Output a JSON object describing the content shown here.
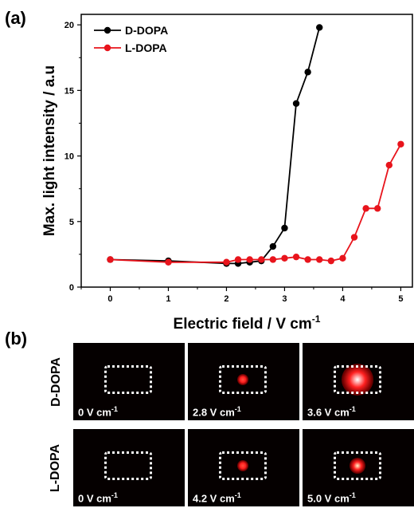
{
  "panel_a_label": "(a)",
  "panel_b_label": "(b)",
  "chart_data": {
    "type": "line",
    "xlabel": "Electric field / V cm",
    "xlabel_sup": "-1",
    "ylabel": "Max. light intensity / a.u",
    "xlim": [
      -0.5,
      5.2
    ],
    "ylim": [
      0,
      20.8
    ],
    "xticks": [
      0,
      1,
      2,
      3,
      4,
      5
    ],
    "yticks": [
      0,
      5,
      10,
      15,
      20
    ],
    "legend_position": "top-left",
    "series": [
      {
        "name": "D-DOPA",
        "color": "#000000",
        "x": [
          0,
          1,
          2,
          2.2,
          2.4,
          2.6,
          2.8,
          3.0,
          3.2,
          3.4,
          3.6
        ],
        "y": [
          2.1,
          2.0,
          1.8,
          1.8,
          1.9,
          2.0,
          3.1,
          4.5,
          14.0,
          16.4,
          19.8
        ]
      },
      {
        "name": "L-DOPA",
        "color": "#e8141c",
        "x": [
          0,
          1,
          2,
          2.2,
          2.4,
          2.6,
          2.8,
          3.0,
          3.2,
          3.4,
          3.6,
          3.8,
          4.0,
          4.2,
          4.4,
          4.6,
          4.8,
          5.0
        ],
        "y": [
          2.1,
          1.9,
          1.9,
          2.1,
          2.1,
          2.1,
          2.1,
          2.2,
          2.3,
          2.1,
          2.1,
          2.0,
          2.2,
          3.8,
          6.0,
          6.0,
          9.3,
          10.9
        ]
      }
    ]
  },
  "panel_b": {
    "rows": [
      {
        "label": "D-DOPA",
        "tiles": [
          {
            "field": "0 V cm",
            "sup": "-1",
            "spot": "none"
          },
          {
            "field": "2.8 V cm",
            "sup": "-1",
            "spot": "small"
          },
          {
            "field": "3.6 V cm",
            "sup": "-1",
            "spot": "large"
          }
        ]
      },
      {
        "label": "L-DOPA",
        "tiles": [
          {
            "field": "0 V cm",
            "sup": "-1",
            "spot": "none"
          },
          {
            "field": "4.2 V cm",
            "sup": "-1",
            "spot": "small"
          },
          {
            "field": "5.0 V cm",
            "sup": "-1",
            "spot": "medium"
          }
        ]
      }
    ]
  }
}
